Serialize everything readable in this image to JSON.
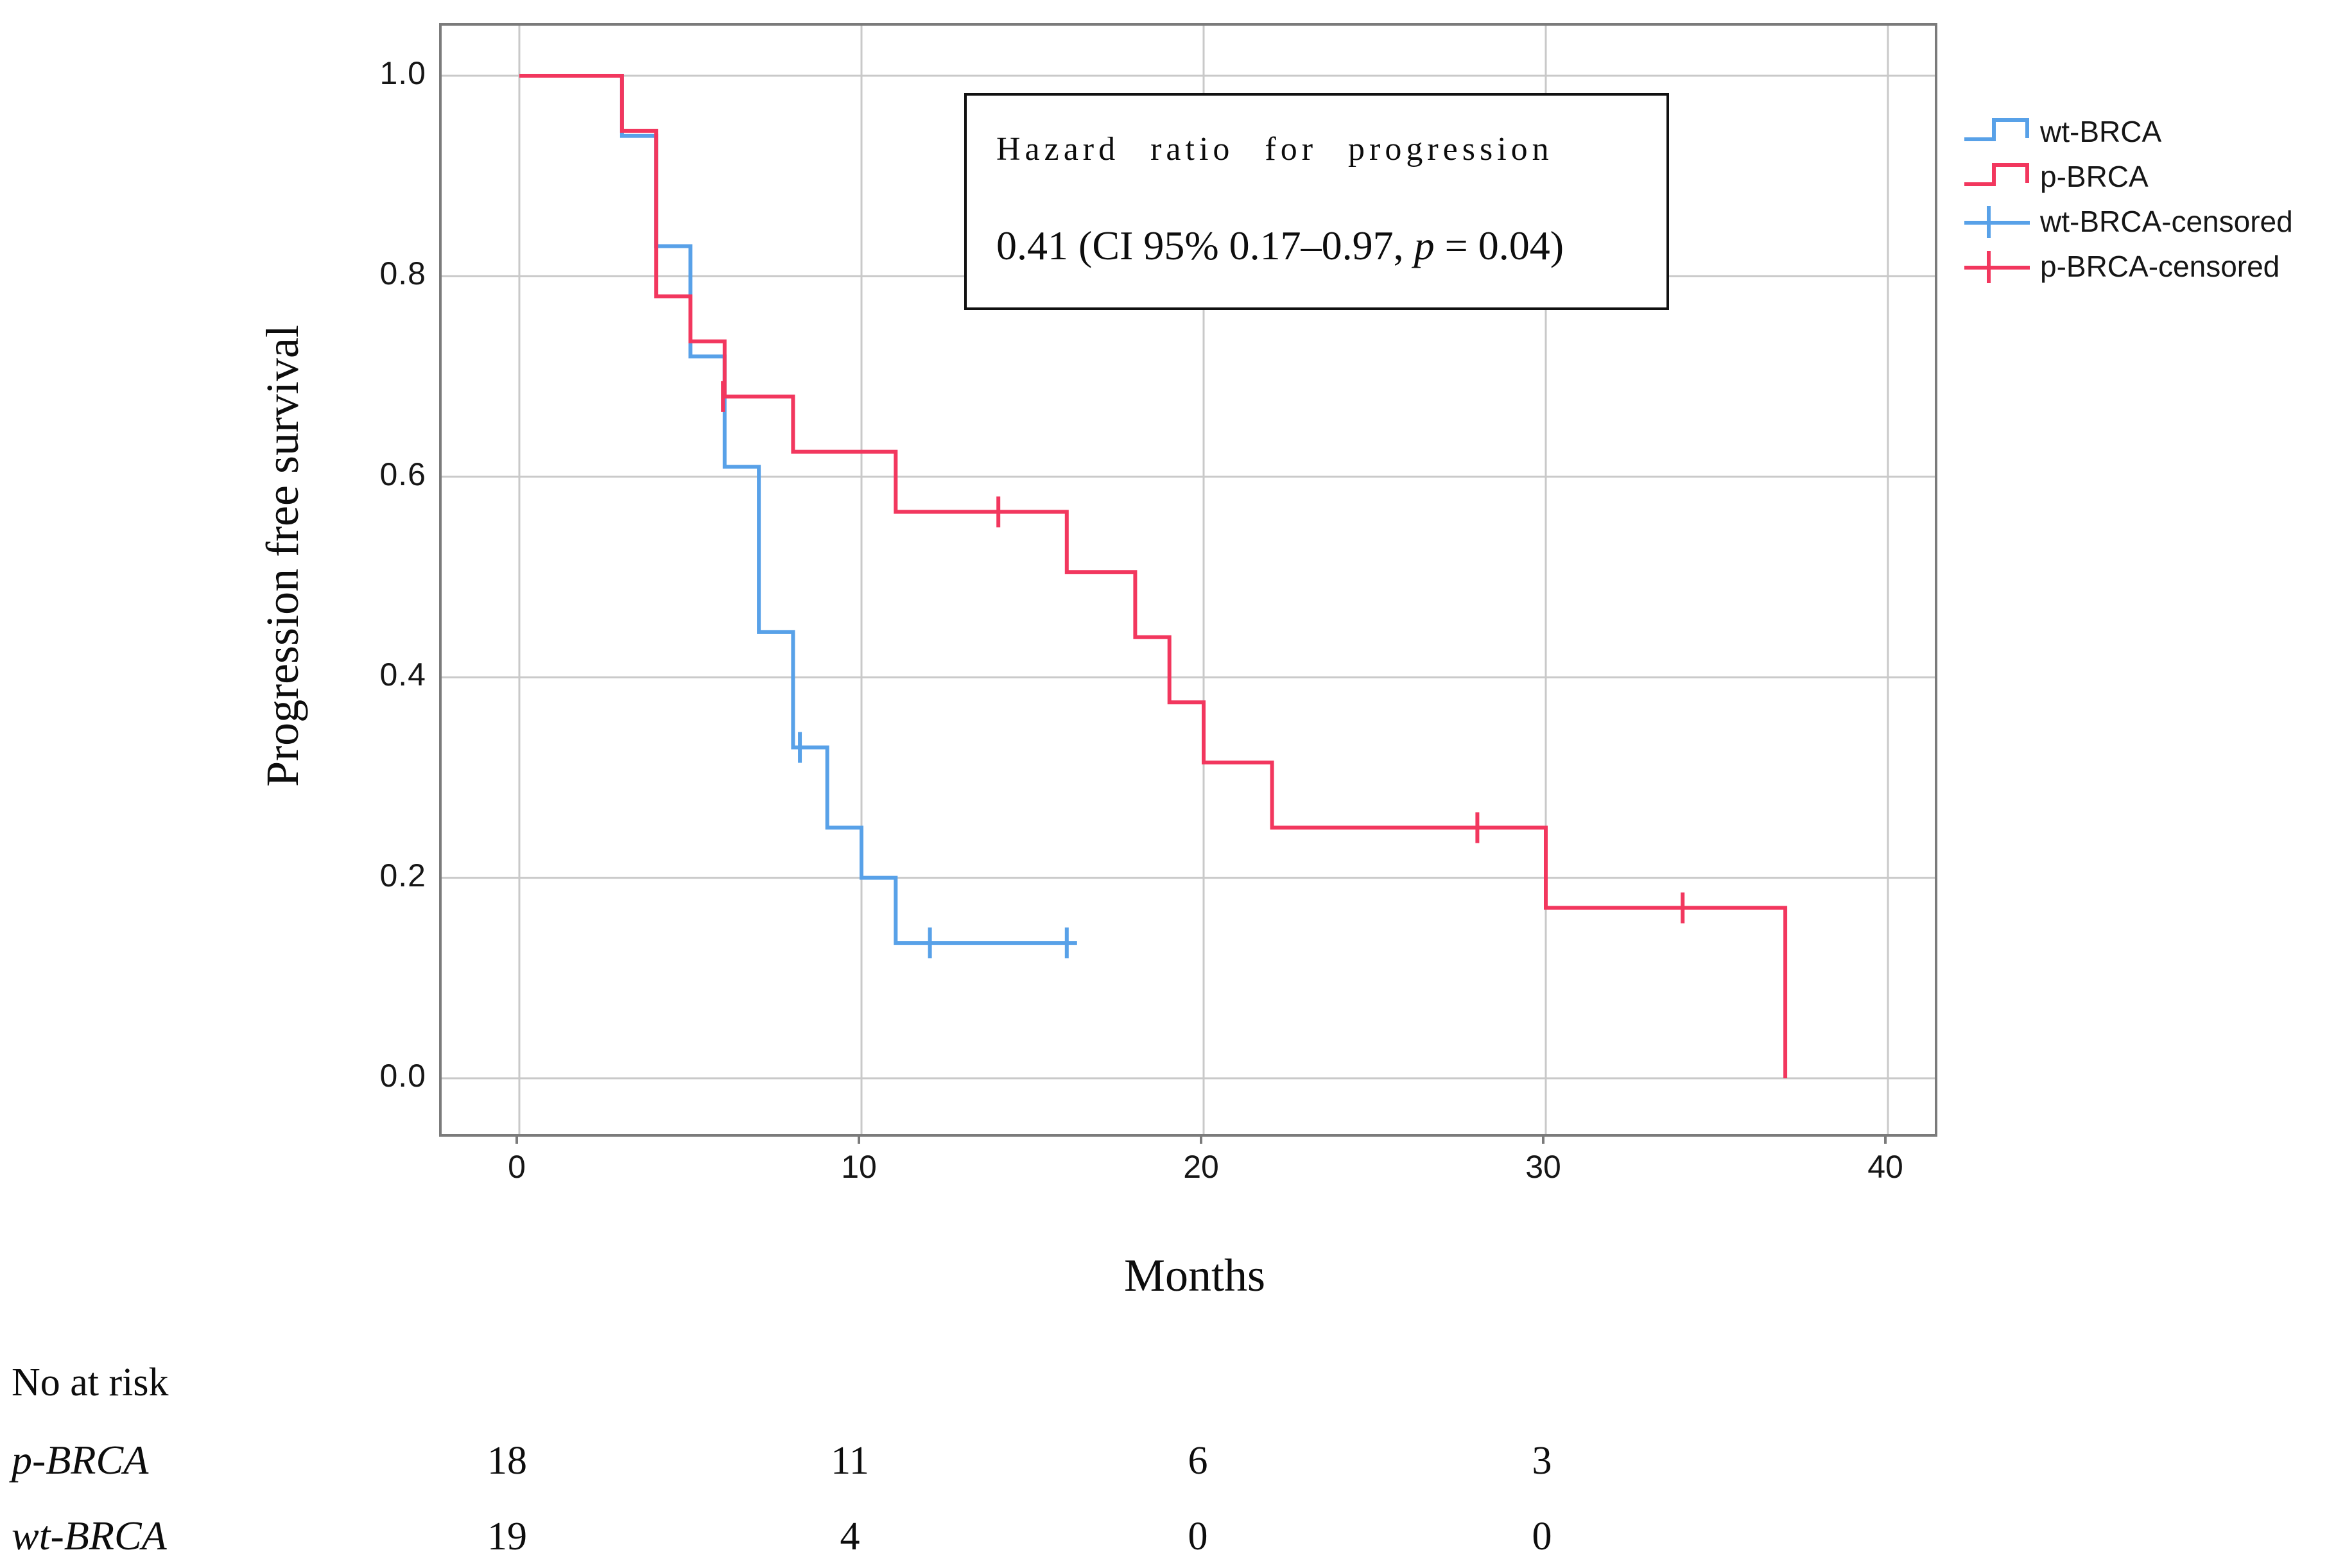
{
  "chart_data": {
    "type": "line",
    "subtype": "kaplan-meier-step",
    "title": "",
    "xlabel": "Months",
    "ylabel": "Progression free survival",
    "grid": true,
    "legend_position": "top-right-outside",
    "x_ticks": {
      "labels": [
        "0",
        "10",
        "20",
        "30",
        "40"
      ],
      "values": [
        0,
        10,
        20,
        30,
        40
      ]
    },
    "y_ticks": {
      "labels": [
        "1.0",
        "0.8",
        "0.6",
        "0.4",
        "0.2",
        "0.0"
      ],
      "values": [
        1.0,
        0.8,
        0.6,
        0.4,
        0.2,
        0.0
      ]
    },
    "xlim": [
      -2.3,
      41.4
    ],
    "ylim": [
      -0.055,
      1.05
    ],
    "series": [
      {
        "name": "wt-BRCA",
        "color": "#58A1E8",
        "steps": [
          [
            0,
            1.0
          ],
          [
            3,
            1.0
          ],
          [
            3,
            0.94
          ],
          [
            4,
            0.94
          ],
          [
            4,
            0.83
          ],
          [
            5,
            0.83
          ],
          [
            5,
            0.72
          ],
          [
            6,
            0.72
          ],
          [
            6,
            0.61
          ],
          [
            7,
            0.61
          ],
          [
            7,
            0.445
          ],
          [
            8,
            0.445
          ],
          [
            8,
            0.33
          ],
          [
            9,
            0.33
          ],
          [
            9,
            0.25
          ],
          [
            10,
            0.25
          ],
          [
            10,
            0.2
          ],
          [
            11,
            0.2
          ],
          [
            11,
            0.135
          ],
          [
            16.3,
            0.135
          ]
        ],
        "censored": [
          [
            8.2,
            0.33
          ],
          [
            12,
            0.135
          ],
          [
            16,
            0.135
          ]
        ]
      },
      {
        "name": "p-BRCA",
        "color": "#F2375E",
        "steps": [
          [
            0,
            1.0
          ],
          [
            3,
            1.0
          ],
          [
            3,
            0.945
          ],
          [
            4,
            0.945
          ],
          [
            4,
            0.78
          ],
          [
            5,
            0.78
          ],
          [
            5,
            0.735
          ],
          [
            6,
            0.735
          ],
          [
            6,
            0.68
          ],
          [
            8,
            0.68
          ],
          [
            8,
            0.625
          ],
          [
            11,
            0.625
          ],
          [
            11,
            0.565
          ],
          [
            16,
            0.565
          ],
          [
            16,
            0.505
          ],
          [
            18,
            0.505
          ],
          [
            18,
            0.44
          ],
          [
            19,
            0.44
          ],
          [
            19,
            0.375
          ],
          [
            20,
            0.375
          ],
          [
            20,
            0.315
          ],
          [
            22,
            0.315
          ],
          [
            22,
            0.25
          ],
          [
            30,
            0.25
          ],
          [
            30,
            0.17
          ],
          [
            37,
            0.17
          ],
          [
            37,
            0.0
          ]
        ],
        "censored": [
          [
            5.95,
            0.68
          ],
          [
            14,
            0.565
          ],
          [
            28,
            0.25
          ],
          [
            34,
            0.17
          ]
        ]
      }
    ],
    "annotation": {
      "line1": "Hazard ratio for progression",
      "line2_parts": [
        "0.41 (CI 95% 0.17–0.97, ",
        "p",
        " = 0.04)"
      ]
    },
    "legend": [
      {
        "label": "wt-BRCA",
        "swatch": "step",
        "series": "wt-BRCA"
      },
      {
        "label": "p-BRCA",
        "swatch": "step",
        "series": "p-BRCA"
      },
      {
        "label": "wt-BRCA-censored",
        "swatch": "censor-tick",
        "series": "wt-BRCA"
      },
      {
        "label": "p-BRCA-censored",
        "swatch": "censor-tick",
        "series": "p-BRCA"
      }
    ],
    "risk_table": {
      "header": "No at risk",
      "time_points": [
        0,
        10,
        20,
        30
      ],
      "rows": [
        {
          "label": "p-BRCA",
          "values": [
            "18",
            "11",
            "6",
            "3"
          ]
        },
        {
          "label": "wt-BRCA",
          "values": [
            "19",
            "4",
            "0",
            "0"
          ]
        }
      ]
    }
  },
  "colors": {
    "wt": "#58A1E8",
    "p": "#F2375E",
    "grid": "#C9C9C9",
    "axis": "#7B7B7B",
    "text": "#111111"
  }
}
